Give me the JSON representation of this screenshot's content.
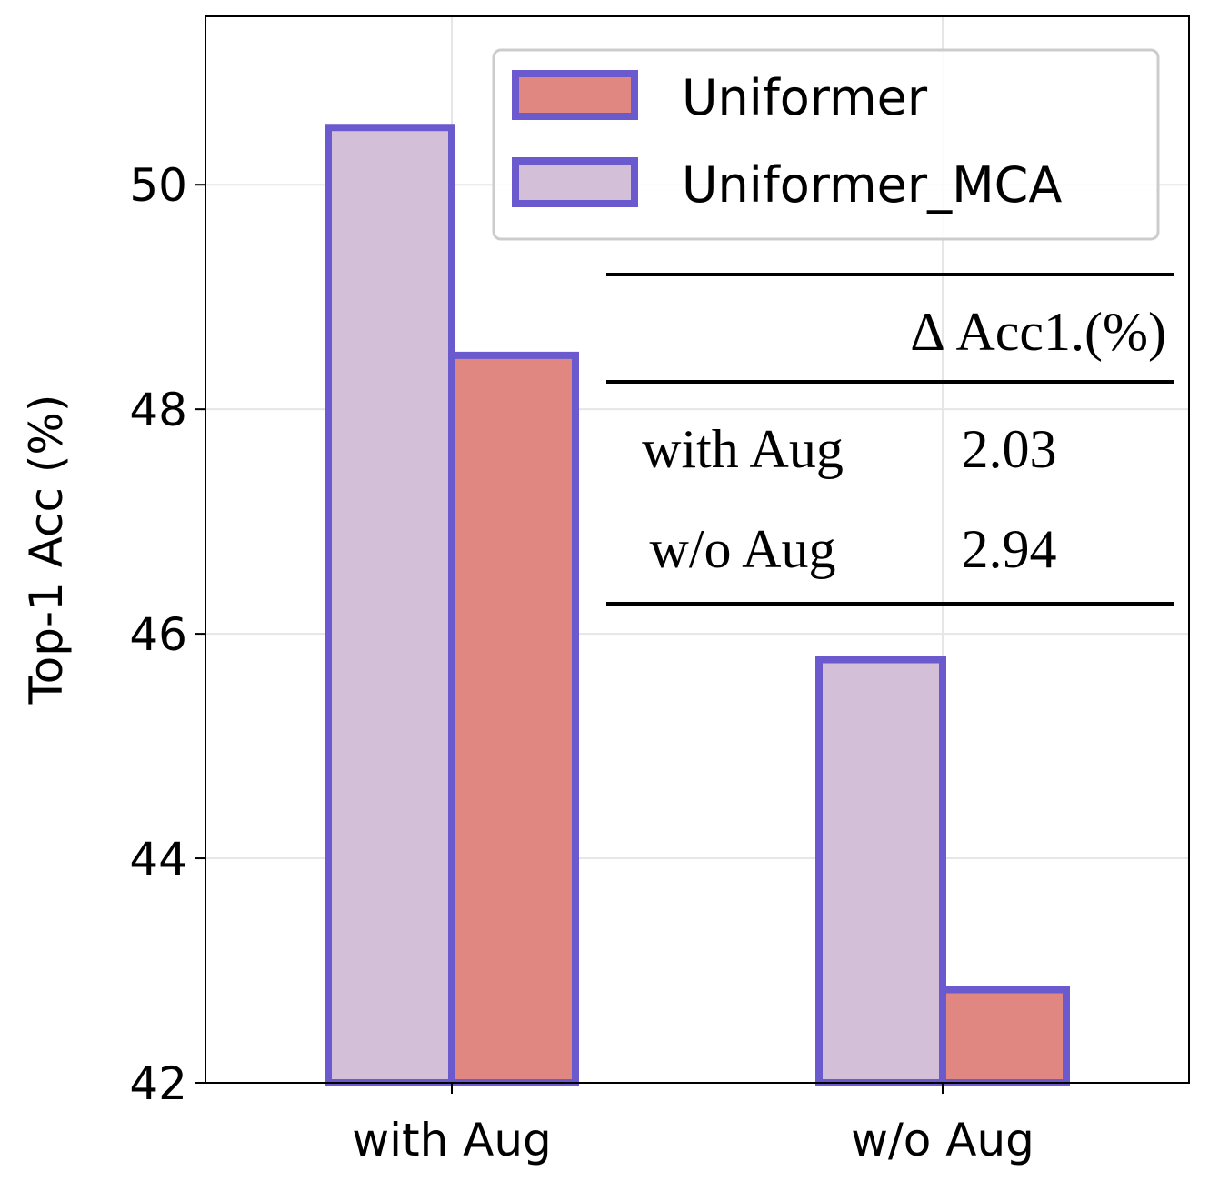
{
  "chart_data": {
    "type": "bar",
    "categories": [
      "with Aug",
      "w/o Aug"
    ],
    "series": [
      {
        "name": "Uniformer_MCA",
        "values": [
          50.51,
          45.77
        ],
        "color": "#d3c0d8"
      },
      {
        "name": "Uniformer",
        "values": [
          48.48,
          42.83
        ],
        "color": "#e08782"
      }
    ],
    "edge_color": "#6a5acd",
    "xlabel": "",
    "ylabel": "Top-1 Acc (%)",
    "ylim": [
      42,
      51.5
    ],
    "yticks": [
      42,
      44,
      46,
      48,
      50
    ],
    "grid": true,
    "legend": {
      "position": "top-right",
      "entries": [
        "Uniformer",
        "Uniformer_MCA"
      ]
    },
    "inset_table": {
      "header": "Δ Acc1.(%)",
      "rows": [
        {
          "label": "with Aug",
          "value": "2.03"
        },
        {
          "label": "w/o Aug",
          "value": "2.94"
        }
      ]
    }
  }
}
